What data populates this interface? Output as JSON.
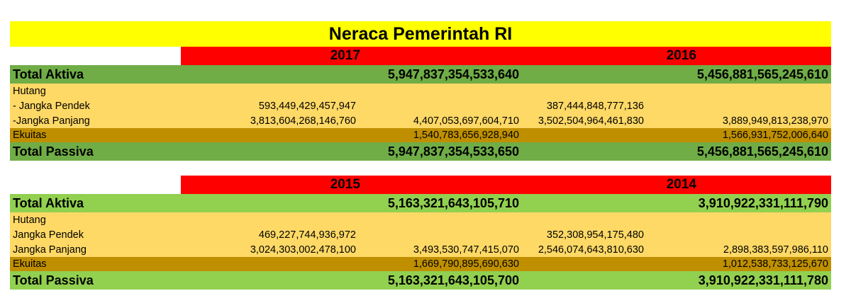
{
  "title": "Neraca Pemerintah RI",
  "block1": {
    "year_left": "2017",
    "year_right": "2016",
    "total_aktiva": {
      "label": "Total Aktiva",
      "left": "5,947,837,354,533,640",
      "right": "5,456,881,565,245,610"
    },
    "hutang_label": "Hutang",
    "jangka_pendek": {
      "label": "- Jangka Pendek",
      "left": "593,449,429,457,947",
      "right": "387,444,848,777,136"
    },
    "jangka_panjang": {
      "label": "-Jangka Panjang",
      "left": "3,813,604,268,146,760",
      "left_total": "4,407,053,697,604,710",
      "right": "3,502,504,964,461,830",
      "right_total": "3,889,949,813,238,970"
    },
    "ekuitas": {
      "label": "Ekuitas",
      "left": "1,540,783,656,928,940",
      "right": "1,566,931,752,006,640"
    },
    "total_passiva": {
      "label": "Total Passiva",
      "left": "5,947,837,354,533,650",
      "right": "5,456,881,565,245,610"
    }
  },
  "block2": {
    "year_left": "2015",
    "year_right": "2014",
    "total_aktiva": {
      "label": "Total Aktiva",
      "left": "5,163,321,643,105,710",
      "right": "3,910,922,331,111,790"
    },
    "hutang_label": "Hutang",
    "jangka_pendek": {
      "label": "Jangka Pendek",
      "left": "469,227,744,936,972",
      "right": "352,308,954,175,480"
    },
    "jangka_panjang": {
      "label": "Jangka Panjang",
      "left": "3,024,303,002,478,100",
      "left_total": "3,493,530,747,415,070",
      "right": "2,546,074,643,810,630",
      "right_total": "2,898,383,597,986,110"
    },
    "ekuitas": {
      "label": "Ekuitas",
      "left": "1,669,790,895,690,630",
      "right": "1,012,538,733,125,670"
    },
    "total_passiva": {
      "label": "Total Passiva",
      "left": "5,163,321,643,105,700",
      "right": "3,910,922,331,111,780"
    }
  },
  "colors": {
    "title_bg": "#ffff00",
    "year_bg": "#ff0000",
    "total_block1": "#70ad47",
    "total_block2": "#92d050",
    "debt_bg": "#ffd966",
    "equity_bg": "#bf8f00"
  }
}
